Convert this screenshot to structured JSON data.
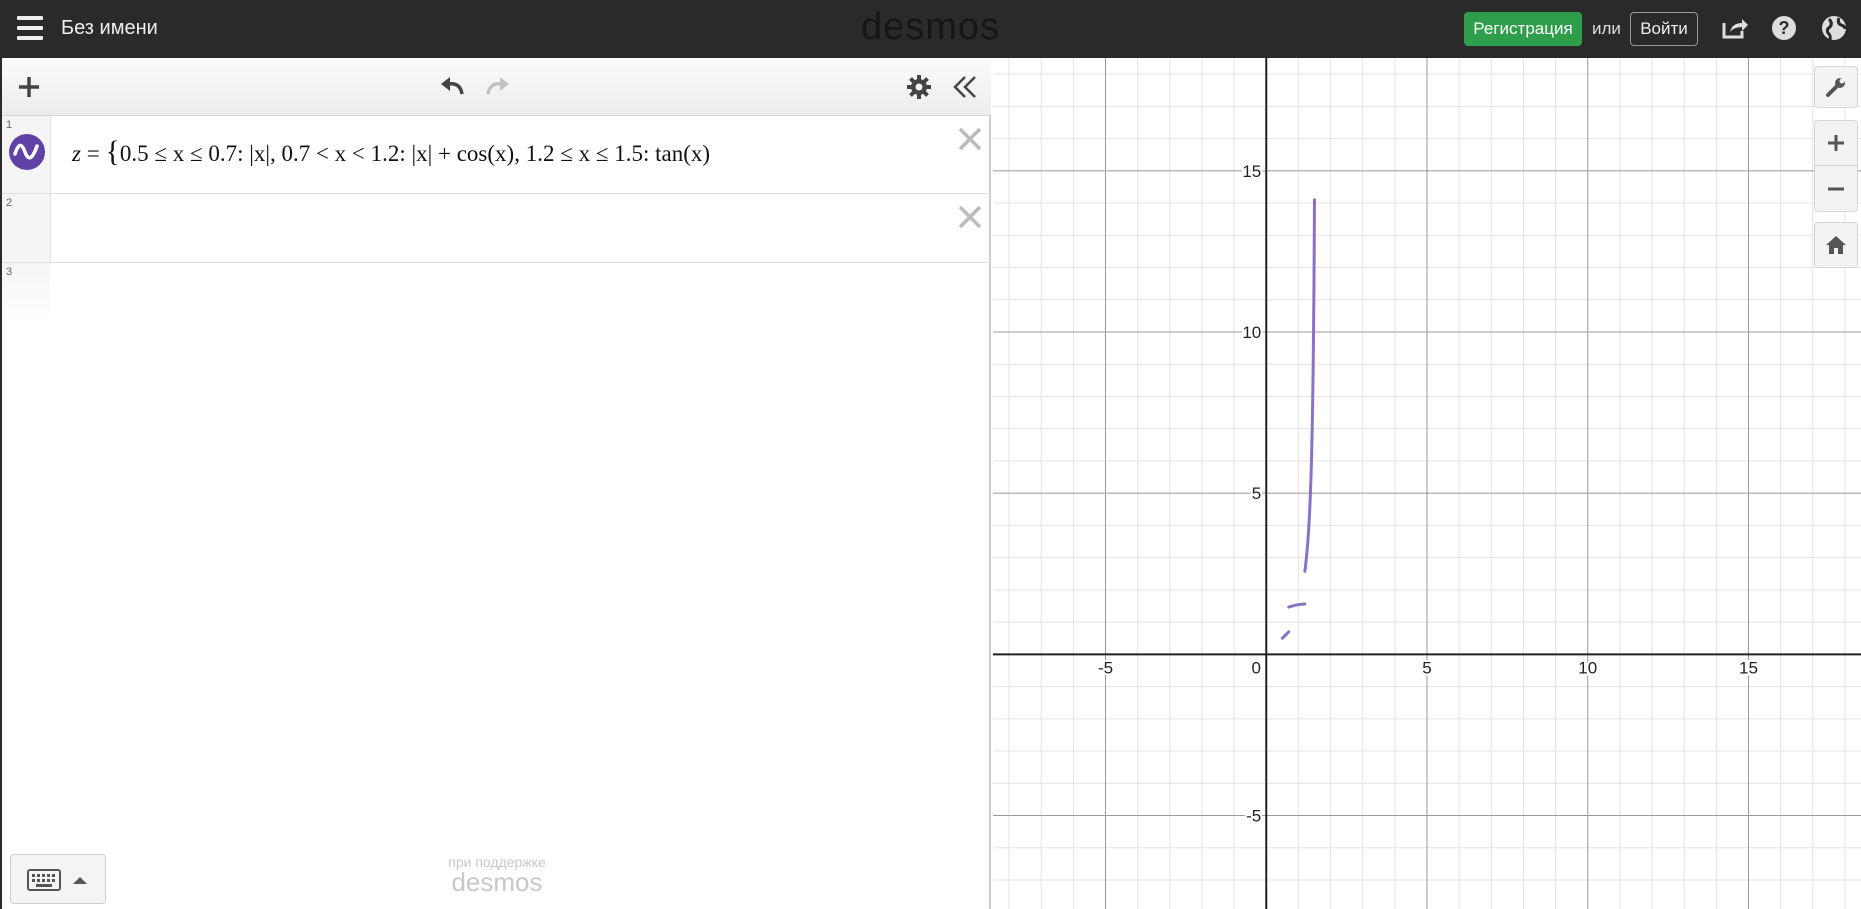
{
  "header": {
    "title": "Без имени",
    "logo": "desmos",
    "signup_label": "Регистрация",
    "or_label": "или",
    "login_label": "Войти"
  },
  "expressions": [
    {
      "number": "1",
      "color": "#6042a6",
      "latex_parts": {
        "lhs": "z",
        "eq": "=",
        "p1_cond": "0.5 ≤ x ≤ 0.7:",
        "p1_val": "|x|,",
        "p2_cond": "0.7 < x < 1.2:",
        "p2_val": "|x| + cos(x),",
        "p3_cond": "1.2 ≤ x ≤ 1.5:",
        "p3_val": "tan(x)"
      }
    },
    {
      "number": "2"
    },
    {
      "number": "3"
    }
  ],
  "footer": {
    "powered_small": "при поддержке",
    "powered_logo": "desmos"
  },
  "graph": {
    "x_ticks": [
      "-5",
      "0",
      "5",
      "10",
      "15"
    ],
    "y_ticks": [
      "15",
      "10",
      "5",
      "-5"
    ],
    "xlim": [
      -8.5,
      18.5
    ],
    "ylim": [
      -7.9,
      18.5
    ],
    "curve_color": "#8a72c4"
  },
  "colors": {
    "header_bg": "#2a2a2a",
    "signup_bg": "#2f9e4a",
    "curve": "#8a72c4"
  }
}
